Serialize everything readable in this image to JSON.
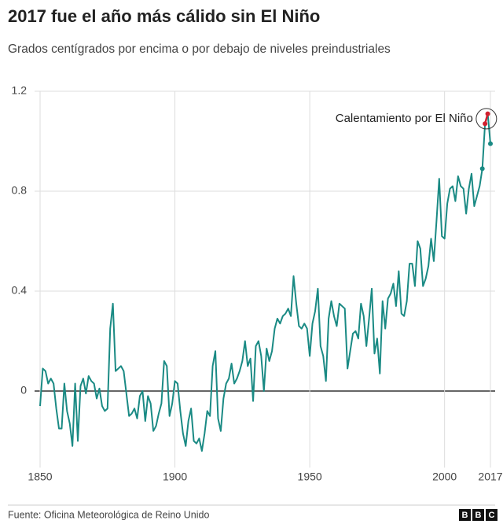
{
  "chart_data": {
    "type": "line",
    "title": "2017 fue el año más cálido sin El Niño",
    "subtitle": "Grados centígrados por encima o por debajo de niveles preindustriales",
    "x": [
      1850,
      1851,
      1852,
      1853,
      1854,
      1855,
      1856,
      1857,
      1858,
      1859,
      1860,
      1861,
      1862,
      1863,
      1864,
      1865,
      1866,
      1867,
      1868,
      1869,
      1870,
      1871,
      1872,
      1873,
      1874,
      1875,
      1876,
      1877,
      1878,
      1879,
      1880,
      1881,
      1882,
      1883,
      1884,
      1885,
      1886,
      1887,
      1888,
      1889,
      1890,
      1891,
      1892,
      1893,
      1894,
      1895,
      1896,
      1897,
      1898,
      1899,
      1900,
      1901,
      1902,
      1903,
      1904,
      1905,
      1906,
      1907,
      1908,
      1909,
      1910,
      1911,
      1912,
      1913,
      1914,
      1915,
      1916,
      1917,
      1918,
      1919,
      1920,
      1921,
      1922,
      1923,
      1924,
      1925,
      1926,
      1927,
      1928,
      1929,
      1930,
      1931,
      1932,
      1933,
      1934,
      1935,
      1936,
      1937,
      1938,
      1939,
      1940,
      1941,
      1942,
      1943,
      1944,
      1945,
      1946,
      1947,
      1948,
      1949,
      1950,
      1951,
      1952,
      1953,
      1954,
      1955,
      1956,
      1957,
      1958,
      1959,
      1960,
      1961,
      1962,
      1963,
      1964,
      1965,
      1966,
      1967,
      1968,
      1969,
      1970,
      1971,
      1972,
      1973,
      1974,
      1975,
      1976,
      1977,
      1978,
      1979,
      1980,
      1981,
      1982,
      1983,
      1984,
      1985,
      1986,
      1987,
      1988,
      1989,
      1990,
      1991,
      1992,
      1993,
      1994,
      1995,
      1996,
      1997,
      1998,
      1999,
      2000,
      2001,
      2002,
      2003,
      2004,
      2005,
      2006,
      2007,
      2008,
      2009,
      2010,
      2011,
      2012,
      2013,
      2014,
      2015,
      2016,
      2017
    ],
    "values": [
      -0.06,
      0.09,
      0.08,
      0.03,
      0.05,
      0.03,
      -0.07,
      -0.15,
      -0.15,
      0.03,
      -0.08,
      -0.13,
      -0.22,
      0.03,
      -0.2,
      0.02,
      0.05,
      -0.01,
      0.06,
      0.04,
      0.03,
      -0.03,
      0.01,
      -0.06,
      -0.08,
      -0.07,
      0.25,
      0.35,
      0.08,
      0.09,
      0.1,
      0.08,
      -0.01,
      -0.1,
      -0.09,
      -0.07,
      -0.11,
      -0.02,
      0.0,
      -0.12,
      -0.02,
      -0.05,
      -0.16,
      -0.14,
      -0.09,
      -0.05,
      0.12,
      0.1,
      -0.1,
      -0.05,
      0.04,
      0.03,
      -0.08,
      -0.17,
      -0.22,
      -0.12,
      -0.07,
      -0.2,
      -0.21,
      -0.19,
      -0.24,
      -0.17,
      -0.08,
      -0.1,
      0.1,
      0.16,
      -0.11,
      -0.16,
      -0.03,
      0.03,
      0.05,
      0.11,
      0.03,
      0.05,
      0.08,
      0.12,
      0.2,
      0.1,
      0.13,
      -0.04,
      0.18,
      0.2,
      0.14,
      0.0,
      0.17,
      0.12,
      0.16,
      0.25,
      0.29,
      0.27,
      0.3,
      0.31,
      0.33,
      0.3,
      0.46,
      0.35,
      0.26,
      0.25,
      0.27,
      0.25,
      0.14,
      0.27,
      0.32,
      0.41,
      0.18,
      0.14,
      0.04,
      0.29,
      0.36,
      0.3,
      0.26,
      0.35,
      0.34,
      0.33,
      0.09,
      0.16,
      0.23,
      0.24,
      0.21,
      0.35,
      0.3,
      0.18,
      0.29,
      0.41,
      0.15,
      0.21,
      0.07,
      0.36,
      0.25,
      0.37,
      0.39,
      0.43,
      0.34,
      0.48,
      0.31,
      0.3,
      0.36,
      0.51,
      0.51,
      0.42,
      0.6,
      0.57,
      0.42,
      0.45,
      0.5,
      0.61,
      0.52,
      0.68,
      0.85,
      0.62,
      0.61,
      0.75,
      0.81,
      0.82,
      0.76,
      0.86,
      0.82,
      0.81,
      0.71,
      0.81,
      0.87,
      0.74,
      0.78,
      0.82,
      0.89,
      1.07,
      1.11,
      0.99
    ],
    "color": "#1a8a84",
    "highlight_color": "#d0202e",
    "annotation": {
      "text": "Calentamiento por El Niño",
      "x": [
        2015,
        2016
      ]
    },
    "xlim": [
      1850,
      2017
    ],
    "xticks": [
      1850,
      1900,
      1950,
      2000,
      2017
    ],
    "ylim": [
      -0.25,
      1.2
    ],
    "yticks": [
      0,
      0.4,
      0.8,
      1.2
    ],
    "grid": true
  },
  "footer": {
    "source": "Fuente: Oficina Meteorológica de Reino Unido",
    "logo": [
      "B",
      "B",
      "C"
    ]
  }
}
